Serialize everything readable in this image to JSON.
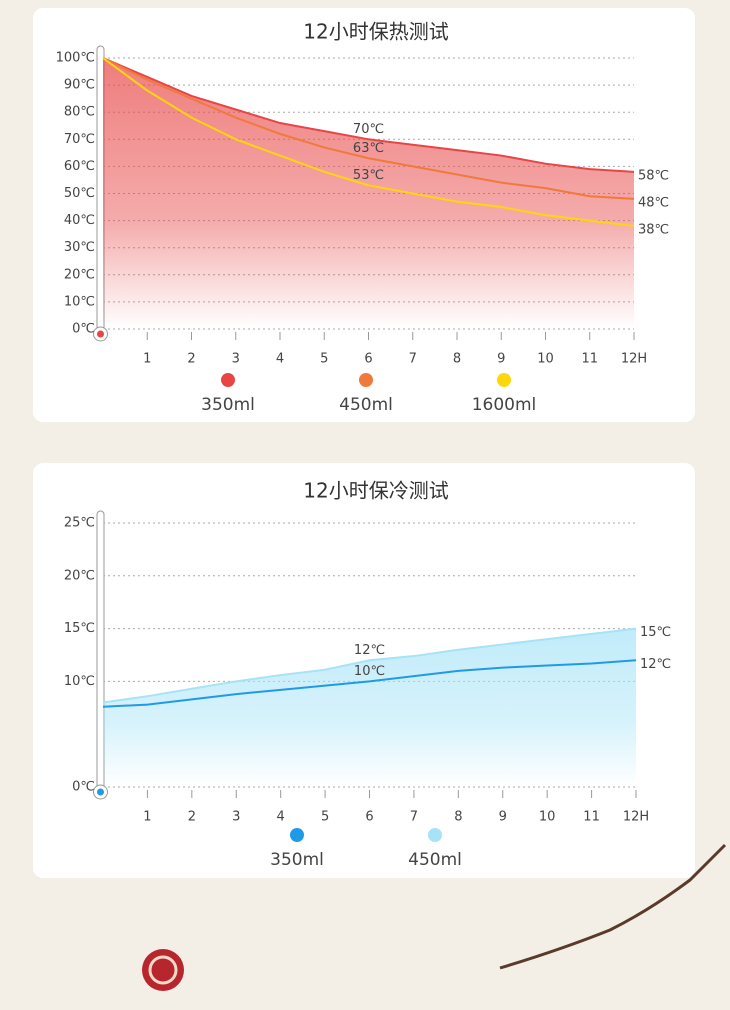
{
  "chart_data": [
    {
      "type": "area",
      "title": "12小时保热测试",
      "x": [
        0,
        1,
        2,
        3,
        4,
        5,
        6,
        7,
        8,
        9,
        10,
        11,
        12
      ],
      "xlim": [
        0,
        12
      ],
      "xticks": [
        1,
        2,
        3,
        4,
        5,
        6,
        7,
        8,
        9,
        10,
        11,
        {
          "value": 12,
          "label": "12H"
        }
      ],
      "ylim": [
        0,
        100
      ],
      "yticks": [
        {
          "value": 0,
          "label": "0℃"
        },
        {
          "value": 10,
          "label": "10℃"
        },
        {
          "value": 20,
          "label": "20℃"
        },
        {
          "value": 30,
          "label": "30℃"
        },
        {
          "value": 40,
          "label": "40℃"
        },
        {
          "value": 50,
          "label": "50℃"
        },
        {
          "value": 60,
          "label": "60℃"
        },
        {
          "value": 70,
          "label": "70℃"
        },
        {
          "value": 80,
          "label": "80℃"
        },
        {
          "value": 90,
          "label": "90℃"
        },
        {
          "value": 100,
          "label": "100℃"
        }
      ],
      "grid": true,
      "series": [
        {
          "name": "350ml",
          "color": "#e84545",
          "fill": true,
          "values": [
            100,
            93,
            86,
            81,
            76,
            73,
            70,
            68,
            66,
            64,
            61,
            59,
            58
          ],
          "value_labels": [
            null,
            null,
            null,
            null,
            null,
            null,
            "70℃",
            null,
            null,
            null,
            null,
            null,
            "58℃"
          ]
        },
        {
          "name": "450ml",
          "color": "#f07a3c",
          "fill": false,
          "values": [
            100,
            92,
            85,
            78,
            72,
            67,
            63,
            60,
            57,
            54,
            52,
            49,
            48
          ],
          "value_labels": [
            null,
            null,
            null,
            null,
            null,
            null,
            "63℃",
            null,
            null,
            null,
            null,
            null,
            "48℃"
          ]
        },
        {
          "name": "1600ml",
          "color": "#ffd60a",
          "fill": false,
          "values": [
            100,
            88,
            78,
            70,
            64,
            58,
            53,
            50,
            47,
            45,
            42,
            40,
            38
          ],
          "value_labels": [
            null,
            null,
            null,
            null,
            null,
            null,
            "53℃",
            null,
            null,
            null,
            null,
            null,
            "38℃"
          ]
        }
      ]
    },
    {
      "type": "area",
      "title": "12小时保冷测试",
      "x": [
        0,
        1,
        2,
        3,
        4,
        5,
        6,
        7,
        8,
        9,
        10,
        11,
        12
      ],
      "xlim": [
        0,
        12
      ],
      "xticks": [
        1,
        2,
        3,
        4,
        5,
        6,
        7,
        8,
        9,
        10,
        11,
        {
          "value": 12,
          "label": "12H"
        }
      ],
      "ylim": [
        0,
        25
      ],
      "yticks": [
        {
          "value": 0,
          "label": "0℃"
        },
        {
          "value": 10,
          "label": "10℃"
        },
        {
          "value": 15,
          "label": "15℃"
        },
        {
          "value": 20,
          "label": "20℃"
        },
        {
          "value": 25,
          "label": "25℃"
        }
      ],
      "grid": true,
      "series": [
        {
          "name": "350ml",
          "color": "#1e9be6",
          "fill": false,
          "values": [
            7.6,
            7.8,
            8.3,
            8.8,
            9.2,
            9.6,
            10,
            10.5,
            11,
            11.3,
            11.5,
            11.7,
            12
          ],
          "value_labels": [
            null,
            null,
            null,
            null,
            null,
            null,
            "10℃",
            null,
            null,
            null,
            null,
            null,
            "12℃"
          ]
        },
        {
          "name": "450ml",
          "color": "#a6e3f7",
          "fill": true,
          "values": [
            8,
            8.6,
            9.3,
            10,
            10.6,
            11.1,
            12,
            12.4,
            13,
            13.5,
            14,
            14.5,
            15
          ],
          "value_labels": [
            null,
            null,
            null,
            null,
            null,
            null,
            "12℃",
            null,
            null,
            null,
            null,
            null,
            "15℃"
          ]
        }
      ]
    }
  ]
}
